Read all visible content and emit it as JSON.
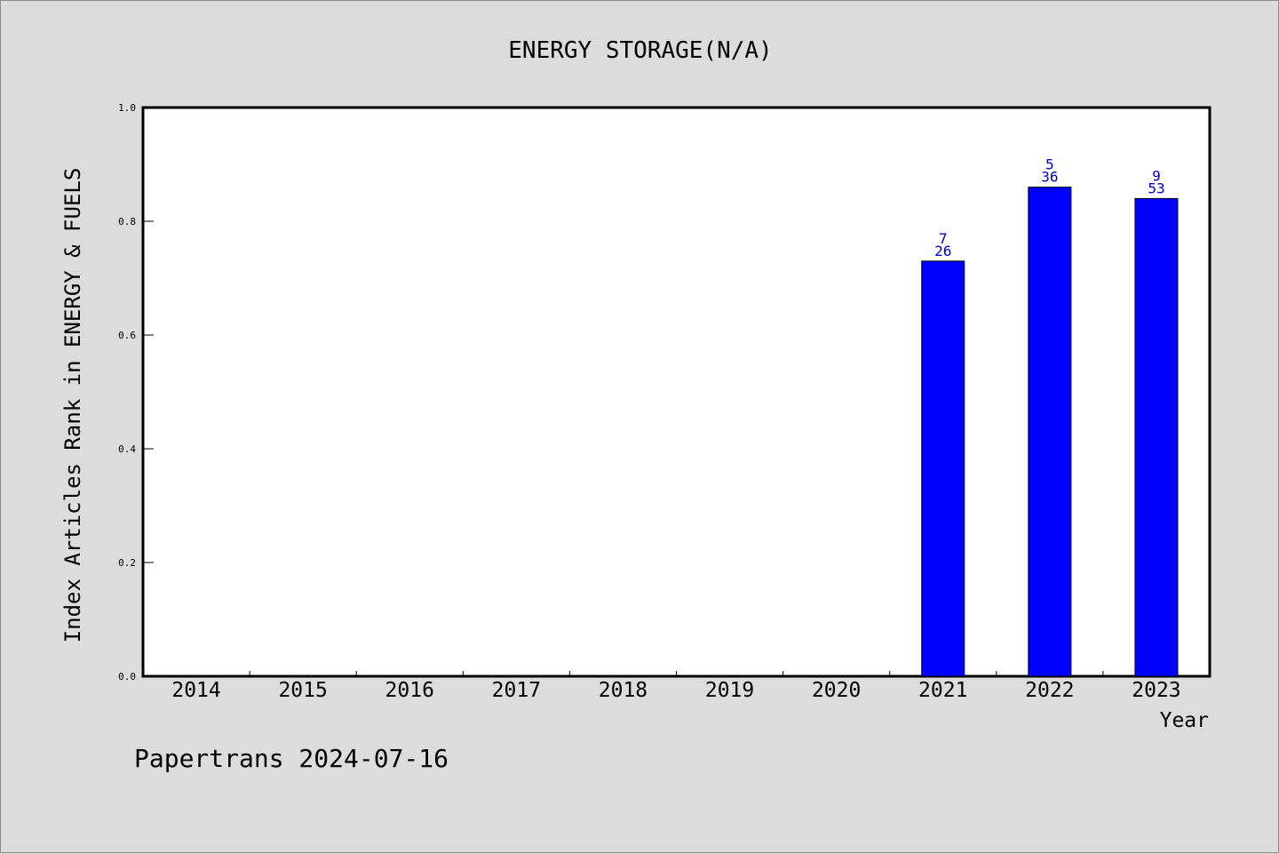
{
  "chart_data": {
    "type": "bar",
    "title": "ENERGY STORAGE(N/A)",
    "xlabel": "Year",
    "ylabel": "Index Articles Rank in ENERGY & FUELS",
    "ylim": [
      0,
      1.0
    ],
    "yticks": [
      "0.0",
      "0.2",
      "0.4",
      "0.6",
      "0.8",
      "1.0"
    ],
    "categories": [
      "2014",
      "2015",
      "2016",
      "2017",
      "2018",
      "2019",
      "2020",
      "2021",
      "2022",
      "2023"
    ],
    "values": [
      null,
      null,
      null,
      null,
      null,
      null,
      null,
      0.73,
      0.86,
      0.84
    ],
    "labels_top": [
      null,
      null,
      null,
      null,
      null,
      null,
      null,
      "7",
      "5",
      "9"
    ],
    "labels_bottom": [
      null,
      null,
      null,
      null,
      null,
      null,
      null,
      "26",
      "36",
      "53"
    ],
    "bar_color": "#0000ff",
    "label_color": "#0000cc",
    "grid": false
  },
  "footer": {
    "text": "Papertrans 2024-07-16"
  }
}
